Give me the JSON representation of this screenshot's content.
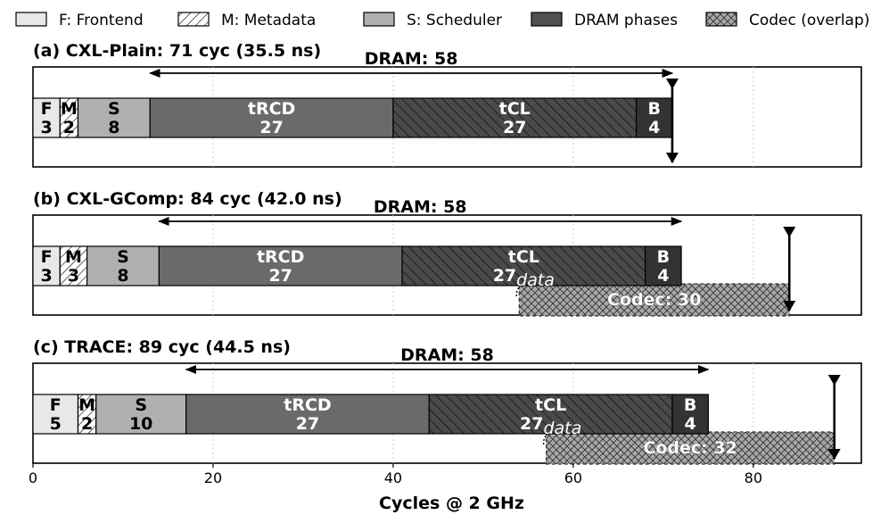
{
  "chart_data": {
    "type": "bar",
    "orientation": "horizontal-stacked-timeline",
    "xlabel": "Cycles @ 2 GHz",
    "xlim": [
      0,
      92
    ],
    "xticks": [
      0,
      20,
      40,
      60,
      80
    ],
    "xtick_labels": [
      "0",
      "20",
      "40",
      "60",
      "80"
    ],
    "grid": "vertical dotted",
    "legend": {
      "placement": "top",
      "entries": [
        {
          "key": "frontend",
          "label": "F: Frontend",
          "color": "#e8e8e8",
          "pattern": "none"
        },
        {
          "key": "metadata",
          "label": "M: Metadata",
          "color": "#ffffff",
          "pattern": "diag"
        },
        {
          "key": "scheduler",
          "label": "S: Scheduler",
          "color": "#b0b0b0",
          "pattern": "none"
        },
        {
          "key": "dram",
          "label": "DRAM phases",
          "color": "#505050",
          "pattern": "none"
        },
        {
          "key": "codec",
          "label": "Codec (overlap)",
          "color": "#a8a8a8",
          "pattern": "cross"
        }
      ]
    },
    "panels": [
      {
        "title": "(a) CXL-Plain: 71 cyc (35.5 ns)",
        "total": 71,
        "dram_label": "DRAM: 58",
        "dram_span": [
          13,
          71
        ],
        "segments": [
          {
            "key": "frontend",
            "letter": "F",
            "value": "3",
            "start": 0,
            "end": 3
          },
          {
            "key": "metadata",
            "letter": "M",
            "value": "2",
            "start": 3,
            "end": 5
          },
          {
            "key": "scheduler",
            "letter": "S",
            "value": "8",
            "start": 5,
            "end": 13
          },
          {
            "key": "tRCD",
            "letter": "tRCD",
            "value": "27",
            "start": 13,
            "end": 40
          },
          {
            "key": "tCL",
            "letter": "tCL",
            "value": "27",
            "sub": "",
            "start": 40,
            "end": 67
          },
          {
            "key": "burst",
            "letter": "B",
            "value": "4",
            "start": 67,
            "end": 71
          }
        ],
        "codec": null
      },
      {
        "title": "(b) CXL-GComp: 84 cyc (42.0 ns)",
        "total": 84,
        "dram_label": "DRAM: 58",
        "dram_span": [
          14,
          72
        ],
        "segments": [
          {
            "key": "frontend",
            "letter": "F",
            "value": "3",
            "start": 0,
            "end": 3
          },
          {
            "key": "metadata",
            "letter": "M",
            "value": "3",
            "start": 3,
            "end": 6
          },
          {
            "key": "scheduler",
            "letter": "S",
            "value": "8",
            "start": 6,
            "end": 14
          },
          {
            "key": "tRCD",
            "letter": "tRCD",
            "value": "27",
            "start": 14,
            "end": 41
          },
          {
            "key": "tCL",
            "letter": "tCL",
            "value": "27",
            "sub": "data",
            "start": 41,
            "end": 68
          },
          {
            "key": "burst",
            "letter": "B",
            "value": "4",
            "start": 68,
            "end": 72
          }
        ],
        "codec": {
          "label": "Codec: 30",
          "start": 54,
          "end": 84
        }
      },
      {
        "title": "(c) TRACE: 89 cyc (44.5 ns)",
        "total": 89,
        "dram_label": "DRAM: 58",
        "dram_span": [
          17,
          75
        ],
        "segments": [
          {
            "key": "frontend",
            "letter": "F",
            "value": "5",
            "start": 0,
            "end": 5
          },
          {
            "key": "metadata",
            "letter": "M",
            "value": "2",
            "start": 5,
            "end": 7
          },
          {
            "key": "scheduler",
            "letter": "S",
            "value": "10",
            "start": 7,
            "end": 17
          },
          {
            "key": "tRCD",
            "letter": "tRCD",
            "value": "27",
            "start": 17,
            "end": 44
          },
          {
            "key": "tCL",
            "letter": "tCL",
            "value": "27",
            "sub": "data",
            "start": 44,
            "end": 71
          },
          {
            "key": "burst",
            "letter": "B",
            "value": "4",
            "start": 71,
            "end": 75
          }
        ],
        "codec": {
          "label": "Codec: 32",
          "start": 57,
          "end": 89
        }
      }
    ],
    "colors": {
      "frontend": "#e8e8e8",
      "metadata": "#ffffff",
      "scheduler": "#b0b0b0",
      "tRCD": "#6a6a6a",
      "tCL": "#4a4a4a",
      "burst": "#333333",
      "codec": "#a8a8a8"
    }
  }
}
